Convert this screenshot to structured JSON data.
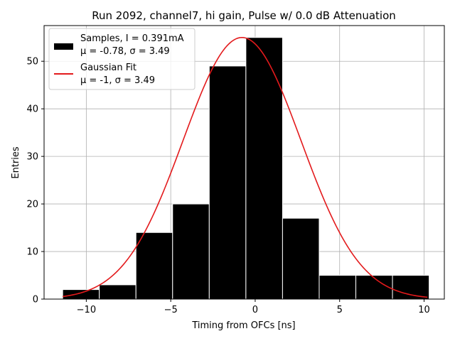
{
  "chart_data": {
    "type": "bar",
    "title": "Run 2092, channel7, hi gain, Pulse w/ 0.0 dB Attenuation",
    "xlabel": "Timing from OFCs [ns]",
    "ylabel": "Entries",
    "xlim": [
      -12.5,
      11.2
    ],
    "ylim": [
      0,
      57.5
    ],
    "xticks": [
      -10,
      -5,
      0,
      5,
      10
    ],
    "xtick_labels": [
      "−10",
      "−5",
      "0",
      "5",
      "10"
    ],
    "yticks": [
      0,
      10,
      20,
      30,
      40,
      50
    ],
    "yticks_labels": [
      "0",
      "10",
      "20",
      "30",
      "40",
      "50"
    ],
    "grid": true,
    "legend_position": "top-left",
    "histogram": {
      "name_lines": [
        "Samples, I = 0.391mA",
        "μ = -0.78, σ = 3.49"
      ],
      "bin_edges": [
        -11.4,
        -9.23,
        -7.06,
        -4.89,
        -2.72,
        -0.55,
        1.62,
        3.79,
        5.96,
        8.13,
        10.3
      ],
      "counts": [
        2,
        3,
        14,
        20,
        49,
        55,
        17,
        5,
        5,
        5
      ],
      "color": "#000000",
      "edgecolor": "#ffffff"
    },
    "fit": {
      "name_lines": [
        "Gaussian Fit",
        "μ = -1, σ = 3.49"
      ],
      "type": "gaussian",
      "mu": -0.78,
      "sigma": 3.49,
      "amplitude": 55,
      "x_range": [
        -11.4,
        10.2
      ],
      "color": "#e31a1c"
    }
  }
}
